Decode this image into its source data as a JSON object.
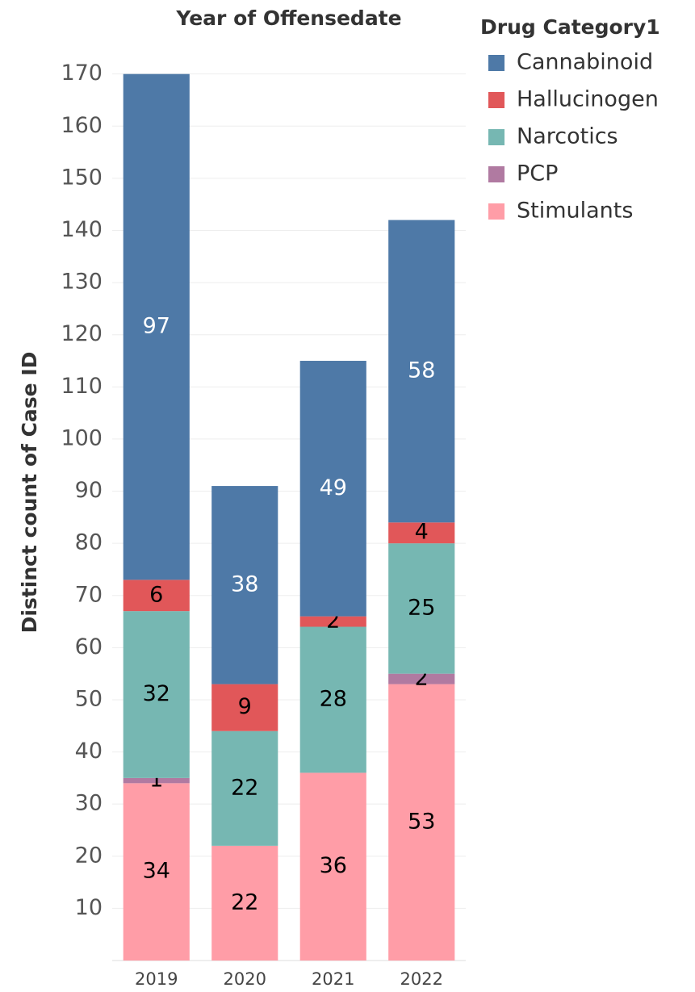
{
  "chart_data": {
    "type": "stacked_bar",
    "title": "Year of Offensedate",
    "y_label": "Distinct count of Case ID",
    "legend_title": "Drug Category1",
    "legend_position": "right",
    "categories": [
      "2019",
      "2020",
      "2021",
      "2022"
    ],
    "series": [
      {
        "name": "Stimulants",
        "color": "#ff9da7",
        "label_color": "#000000",
        "values": [
          34,
          22,
          36,
          53
        ]
      },
      {
        "name": "PCP",
        "color": "#b07aa1",
        "label_color": "#000000",
        "values": [
          1,
          null,
          null,
          2
        ]
      },
      {
        "name": "Narcotics",
        "color": "#76b7b2",
        "label_color": "#000000",
        "values": [
          32,
          22,
          28,
          25
        ]
      },
      {
        "name": "Hallucinogen",
        "color": "#e15759",
        "label_color": "#000000",
        "values": [
          6,
          9,
          2,
          4
        ]
      },
      {
        "name": "Cannabinoid",
        "color": "#4e79a7",
        "label_color": "#ffffff",
        "values": [
          97,
          38,
          49,
          58
        ]
      }
    ],
    "legend_order": [
      4,
      3,
      2,
      1,
      0
    ],
    "ylim": [
      0,
      178
    ],
    "yticks": [
      10,
      20,
      30,
      40,
      50,
      60,
      70,
      80,
      90,
      100,
      110,
      120,
      130,
      140,
      150,
      160,
      170
    ],
    "grid": true
  }
}
